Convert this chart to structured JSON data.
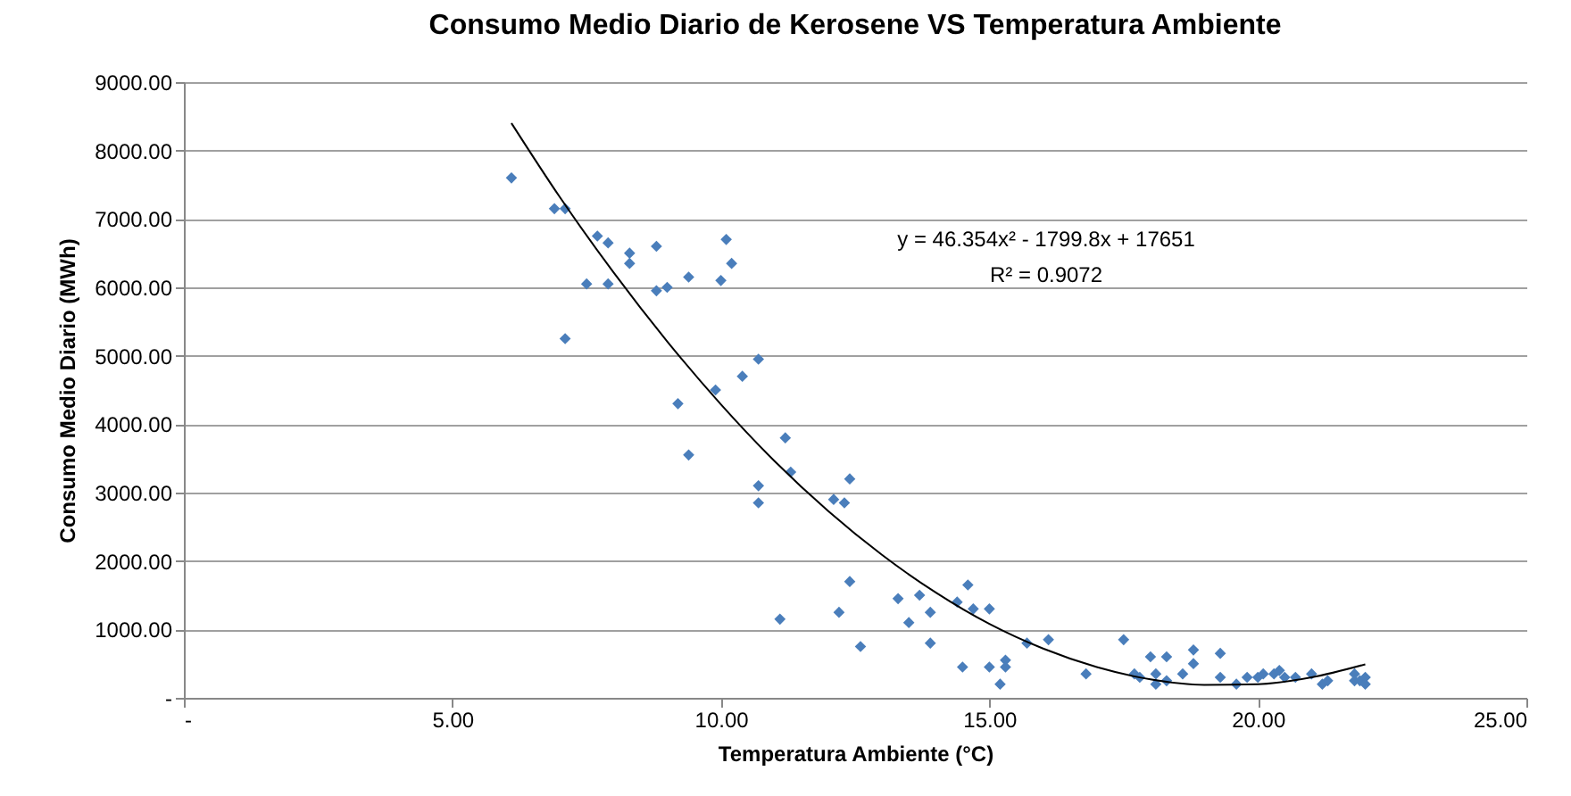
{
  "chart_data": {
    "type": "scatter",
    "title": "Consumo Medio Diario de Kerosene VS Temperatura Ambiente",
    "xlabel": "Temperatura Ambiente (°C)",
    "ylabel": "Consumo Medio Diario (MWh)",
    "xlim": [
      0,
      25
    ],
    "xticks": [
      {
        "value": 0,
        "label": "-"
      },
      {
        "value": 5,
        "label": "5.00"
      },
      {
        "value": 10,
        "label": "10.00"
      },
      {
        "value": 15,
        "label": "15.00"
      },
      {
        "value": 20,
        "label": "20.00"
      },
      {
        "value": 25,
        "label": "25.00"
      }
    ],
    "ylim": [
      0,
      9000
    ],
    "yticks": [
      {
        "value": 0,
        "label": "-"
      },
      {
        "value": 1000,
        "label": "1000.00"
      },
      {
        "value": 2000,
        "label": "2000.00"
      },
      {
        "value": 3000,
        "label": "3000.00"
      },
      {
        "value": 4000,
        "label": "4000.00"
      },
      {
        "value": 5000,
        "label": "5000.00"
      },
      {
        "value": 6000,
        "label": "6000.00"
      },
      {
        "value": 7000,
        "label": "7000.00"
      },
      {
        "value": 8000,
        "label": "8000.00"
      },
      {
        "value": 9000,
        "label": "9000.00"
      }
    ],
    "grid": "y",
    "marker": "diamond",
    "annotations": [
      "y = 46.354x² - 1799.8x + 17651",
      "R² = 0.9072"
    ],
    "series": [
      {
        "color": "#4a7ebb",
        "x": [
          6.1,
          6.9,
          7.1,
          7.1,
          7.5,
          7.7,
          7.9,
          7.9,
          8.3,
          8.3,
          8.8,
          8.8,
          9.0,
          9.2,
          9.4,
          9.4,
          9.9,
          10.0,
          10.1,
          10.2,
          10.4,
          10.7,
          10.7,
          10.7,
          11.1,
          11.2,
          11.3,
          12.1,
          12.2,
          12.3,
          12.4,
          12.4,
          12.6,
          13.3,
          13.5,
          13.7,
          13.9,
          13.9,
          14.4,
          14.5,
          14.6,
          14.7,
          15.0,
          15.0,
          15.2,
          15.3,
          15.3,
          15.7,
          16.1,
          16.8,
          17.5,
          17.7,
          17.8,
          18.0,
          18.1,
          18.1,
          18.3,
          18.3,
          18.6,
          18.8,
          18.8,
          19.3,
          19.3,
          19.6,
          19.8,
          20.0,
          20.1,
          20.3,
          20.4,
          20.5,
          20.7,
          21.0,
          21.2,
          21.3,
          21.8,
          21.8,
          21.9,
          22.0,
          22.0
        ],
        "values": [
          7600,
          7150,
          7150,
          5250,
          6050,
          6750,
          6650,
          6050,
          6500,
          6350,
          6600,
          5950,
          6000,
          4300,
          6150,
          3550,
          4500,
          6100,
          6700,
          6350,
          4700,
          4950,
          3100,
          2850,
          1150,
          3800,
          3300,
          2900,
          1250,
          2850,
          1700,
          3200,
          750,
          1450,
          1100,
          1500,
          800,
          1250,
          1400,
          450,
          1650,
          1300,
          1300,
          450,
          200,
          550,
          450,
          800,
          850,
          350,
          850,
          350,
          300,
          600,
          200,
          350,
          250,
          600,
          350,
          500,
          700,
          650,
          300,
          200,
          300,
          300,
          350,
          350,
          400,
          300,
          300,
          350,
          200,
          250,
          350,
          250,
          250,
          300,
          200
        ]
      },
      {
        "type": "line",
        "color": "#000000",
        "marker": "none",
        "line_style": "solid",
        "x": [
          6.1,
          7,
          8,
          9,
          10,
          11,
          12,
          13,
          14,
          15,
          16,
          17,
          18,
          19,
          20,
          21,
          22
        ],
        "values": [
          8400,
          7320,
          6220,
          5210,
          4290,
          3460,
          2730,
          2090,
          1540,
          1080,
          720,
          450,
          270,
          190,
          200,
          300,
          490
        ]
      }
    ]
  }
}
